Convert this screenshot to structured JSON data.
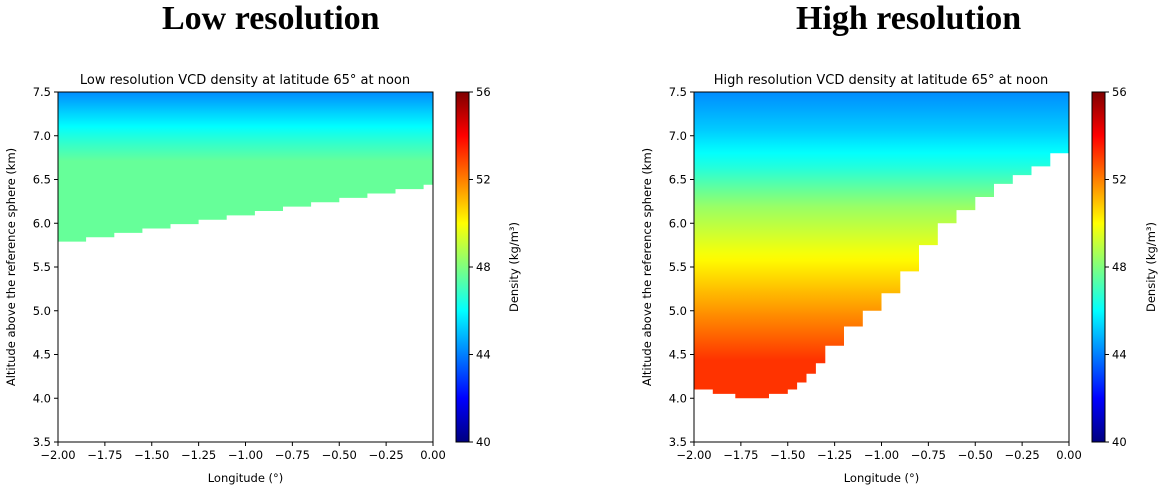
{
  "panel_titles": [
    "Low resolution",
    "High resolution"
  ],
  "colormap": {
    "name": "jet",
    "stops": [
      "#00007f",
      "#0000ff",
      "#007fff",
      "#00ffff",
      "#7fff7f",
      "#ffff00",
      "#ff7f00",
      "#ff0000",
      "#7f0000"
    ],
    "mask_color": "#ffffff"
  },
  "chart_data": [
    {
      "type": "heatmap",
      "title": "Low resolution VCD density at latitude 65° at noon",
      "xlabel": "Longitude (°)",
      "ylabel": "Altitude above the reference sphere (km)",
      "xlim": [
        -2.0,
        0.0
      ],
      "ylim": [
        3.5,
        7.5
      ],
      "x_ticks": [
        -2.0,
        -1.75,
        -1.5,
        -1.25,
        -1.0,
        -0.75,
        -0.5,
        -0.25,
        0.0
      ],
      "x_tick_labels": [
        "−2.00",
        "−1.75",
        "−1.50",
        "−1.25",
        "−1.00",
        "−0.75",
        "−0.50",
        "−0.25",
        "0.00"
      ],
      "y_ticks": [
        3.5,
        4.0,
        4.5,
        5.0,
        5.5,
        6.0,
        6.5,
        7.0,
        7.5
      ],
      "y_tick_labels": [
        "3.5",
        "4.0",
        "4.5",
        "5.0",
        "5.5",
        "6.0",
        "6.5",
        "7.0",
        "7.5"
      ],
      "colorbar": {
        "label": "Density (kg/m³)",
        "range": [
          40,
          56
        ],
        "ticks": [
          40,
          44,
          48,
          52,
          56
        ],
        "tick_labels": [
          "40",
          "44",
          "48",
          "52",
          "56"
        ]
      },
      "density_vs_altitude": {
        "altitude_km": [
          5.7,
          6.4,
          7.5
        ],
        "density": [
          47.6,
          46.4,
          44.2
        ]
      },
      "data_boundary": {
        "longitude": [
          -2.0,
          -1.85,
          -1.7,
          -1.55,
          -1.4,
          -1.25,
          -1.1,
          -0.95,
          -0.8,
          -0.65,
          -0.5,
          -0.35,
          -0.2,
          -0.05,
          0.0
        ],
        "min_altitude_km": [
          5.74,
          5.79,
          5.84,
          5.89,
          5.94,
          5.99,
          6.04,
          6.09,
          6.14,
          6.19,
          6.24,
          6.29,
          6.34,
          6.39,
          6.44
        ]
      }
    },
    {
      "type": "heatmap",
      "title": "High resolution VCD density at latitude 65° at noon",
      "xlabel": "Longitude (°)",
      "ylabel": "Altitude above the reference sphere (km)",
      "xlim": [
        -2.0,
        0.0
      ],
      "ylim": [
        3.5,
        7.5
      ],
      "x_ticks": [
        -2.0,
        -1.75,
        -1.5,
        -1.25,
        -1.0,
        -0.75,
        -0.5,
        -0.25,
        0.0
      ],
      "x_tick_labels": [
        "−2.00",
        "−1.75",
        "−1.50",
        "−1.25",
        "−1.00",
        "−0.75",
        "−0.50",
        "−0.25",
        "0.00"
      ],
      "y_ticks": [
        3.5,
        4.0,
        4.5,
        5.0,
        5.5,
        6.0,
        6.5,
        7.0,
        7.5
      ],
      "y_tick_labels": [
        "3.5",
        "4.0",
        "4.5",
        "5.0",
        "5.5",
        "6.0",
        "6.5",
        "7.0",
        "7.5"
      ],
      "colorbar": {
        "label": "Density (kg/m³)",
        "range": [
          40,
          56
        ],
        "ticks": [
          40,
          44,
          48,
          52,
          56
        ],
        "tick_labels": [
          "40",
          "44",
          "48",
          "52",
          "56"
        ]
      },
      "density_vs_altitude": {
        "altitude_km": [
          4.0,
          4.5,
          5.0,
          5.5,
          6.0,
          6.5,
          7.0,
          7.5
        ],
        "density": [
          53.2,
          52.0,
          50.8,
          49.6,
          48.4,
          46.6,
          45.2,
          44.2
        ]
      },
      "data_boundary": {
        "longitude": [
          -2.0,
          -1.9,
          -1.78,
          -1.7,
          -1.6,
          -1.5,
          -1.45,
          -1.4,
          -1.35,
          -1.3,
          -1.2,
          -1.1,
          -1.0,
          -0.9,
          -0.8,
          -0.7,
          -0.6,
          -0.5,
          -0.4,
          -0.3,
          -0.2,
          -0.1,
          0.0
        ],
        "min_altitude_km": [
          4.15,
          4.1,
          4.05,
          4.0,
          4.0,
          4.05,
          4.1,
          4.18,
          4.28,
          4.4,
          4.6,
          4.82,
          5.0,
          5.2,
          5.45,
          5.75,
          6.0,
          6.15,
          6.3,
          6.45,
          6.55,
          6.65,
          6.8
        ]
      }
    }
  ]
}
